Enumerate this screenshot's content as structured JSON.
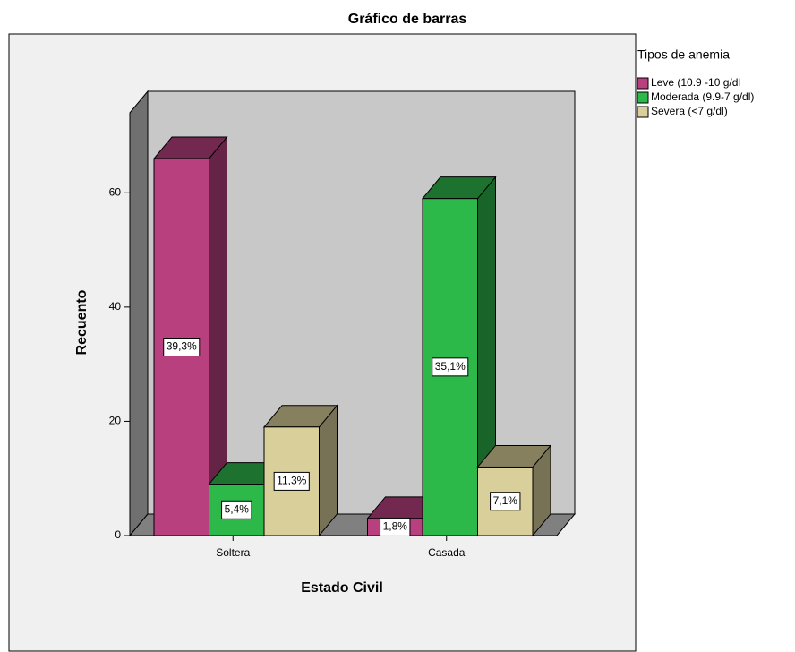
{
  "chart_data": {
    "type": "bar3d",
    "title": "Gráfico de barras",
    "x_label": "Estado Civil",
    "y_label": "Recuento",
    "legend_title": "Tipos de anemia",
    "legend": "right",
    "categories": [
      "Soltera",
      "Casada"
    ],
    "series": [
      {
        "name": "Leve (10.9 -10 g/dl",
        "color": "#b8407f",
        "values": [
          66,
          3
        ],
        "percent_labels": [
          "39,3%",
          "1,8%"
        ]
      },
      {
        "name": "Moderada (9.9-7 g/dl)",
        "color": "#2db84a",
        "values": [
          9,
          59
        ],
        "percent_labels": [
          "5,4%",
          "35,1%"
        ]
      },
      {
        "name": "Severa (<7 g/dl)",
        "color": "#d8cf9a",
        "values": [
          19,
          12
        ],
        "percent_labels": [
          "11,3%",
          "7,1%"
        ]
      }
    ],
    "ylim": [
      0,
      74
    ],
    "yticks": [
      0,
      20,
      40,
      60
    ]
  }
}
